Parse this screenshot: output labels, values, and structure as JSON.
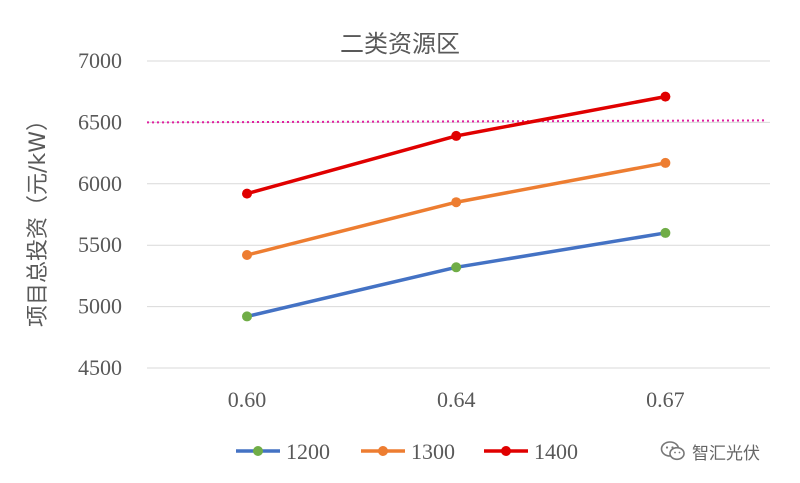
{
  "chart_data": {
    "type": "line",
    "title": "二类资源区",
    "xlabel": "",
    "ylabel": "项目总投资（元/kW）",
    "categories": [
      "0.60",
      "0.64",
      "0.67"
    ],
    "ylim": [
      4500,
      7000
    ],
    "yticks": [
      "4500",
      "5000",
      "5500",
      "6000",
      "6500",
      "7000"
    ],
    "grid": "horizontal",
    "legend_position": "bottom",
    "series": [
      {
        "name": "1200",
        "values": [
          4920,
          5320,
          5600
        ],
        "line_color": "#4472c4",
        "marker_color": "#70ad47"
      },
      {
        "name": "1300",
        "values": [
          5420,
          5850,
          6170
        ],
        "line_color": "#ed7d31",
        "marker_color": "#ed7d31"
      },
      {
        "name": "1400",
        "values": [
          5920,
          6390,
          6710
        ],
        "line_color": "#e00000",
        "marker_color": "#e00000"
      }
    ],
    "reference_line": {
      "value": 6500,
      "color": "#e020a0",
      "style": "dotted"
    }
  },
  "watermark": {
    "text": "智汇光伏",
    "icon": "wechat-icon"
  }
}
